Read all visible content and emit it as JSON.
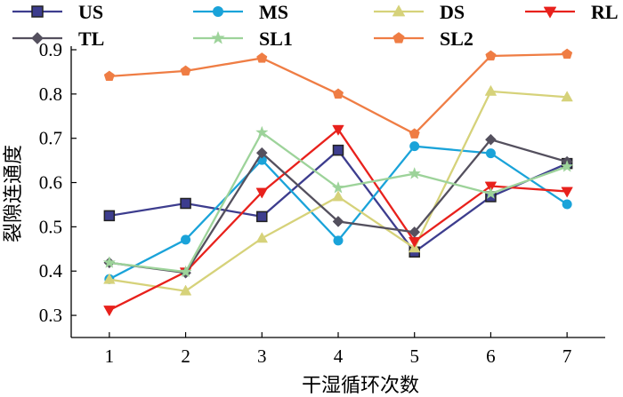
{
  "chart_data": {
    "type": "line",
    "title": "",
    "xlabel": "干湿循环次数",
    "ylabel": "裂隙连通度",
    "x": [
      1,
      2,
      3,
      4,
      5,
      6,
      7
    ],
    "xlim": [
      0.5,
      7.5
    ],
    "ylim": [
      0.25,
      0.9
    ],
    "yticks": [
      "0.3",
      "0.4",
      "0.5",
      "0.6",
      "0.7",
      "0.8",
      "0.9"
    ],
    "grid": false,
    "legend_position": "top",
    "series": [
      {
        "name": "US",
        "color": "#3d3d8e",
        "marker": "square",
        "values": [
          0.525,
          0.553,
          0.523,
          0.673,
          0.443,
          0.568,
          0.643
        ]
      },
      {
        "name": "MS",
        "color": "#1aa3d9",
        "marker": "circle",
        "values": [
          0.382,
          0.471,
          0.651,
          0.469,
          0.682,
          0.666,
          0.551
        ]
      },
      {
        "name": "DS",
        "color": "#d6d27a",
        "marker": "triangle",
        "values": [
          0.381,
          0.355,
          0.474,
          0.568,
          0.452,
          0.806,
          0.793
        ]
      },
      {
        "name": "RL",
        "color": "#e8211c",
        "marker": "triangle-down",
        "values": [
          0.312,
          0.398,
          0.578,
          0.72,
          0.467,
          0.592,
          0.58
        ]
      },
      {
        "name": "TL",
        "color": "#54505e",
        "marker": "diamond",
        "values": [
          0.419,
          0.396,
          0.667,
          0.512,
          0.488,
          0.697,
          0.647
        ]
      },
      {
        "name": "SL1",
        "color": "#9dd39a",
        "marker": "star",
        "values": [
          0.419,
          0.398,
          0.713,
          0.588,
          0.62,
          0.575,
          0.636
        ]
      },
      {
        "name": "SL2",
        "color": "#ef7d44",
        "marker": "pentagon",
        "values": [
          0.84,
          0.852,
          0.881,
          0.8,
          0.71,
          0.886,
          0.89
        ]
      }
    ]
  }
}
